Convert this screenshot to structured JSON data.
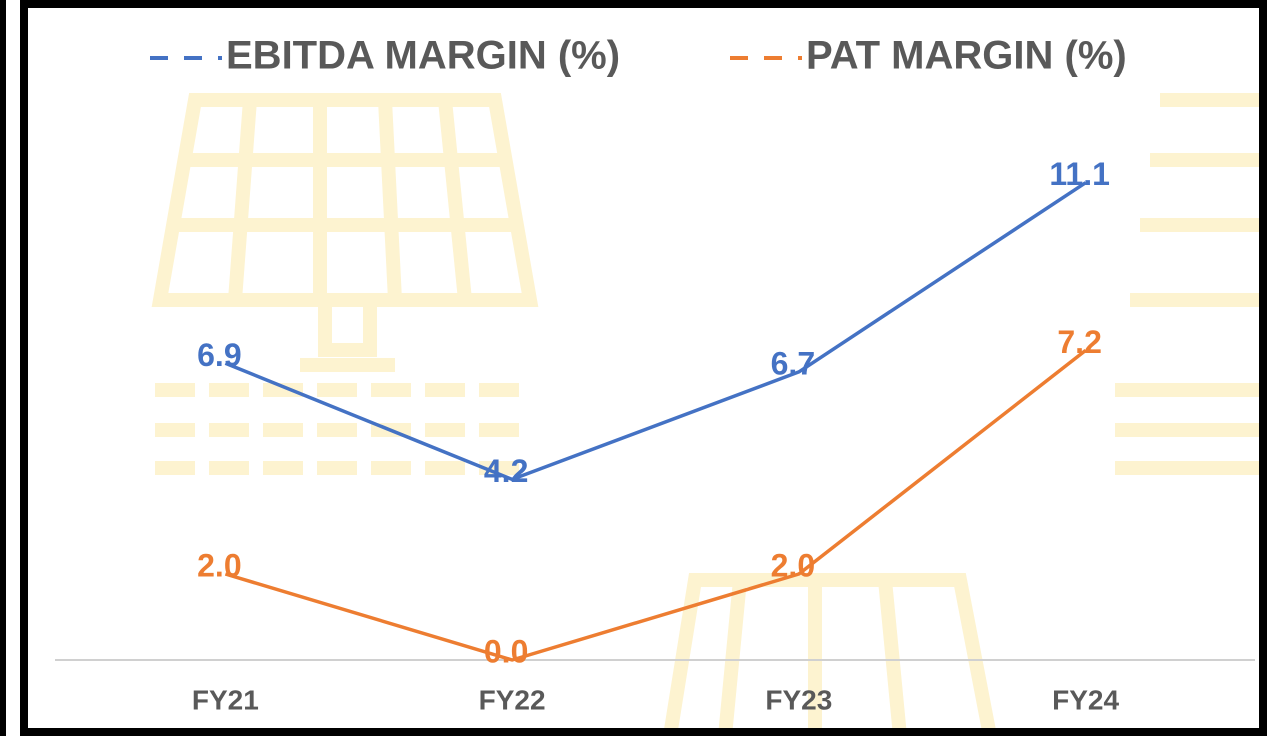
{
  "chart_data": {
    "type": "line",
    "categories": [
      "FY21",
      "FY22",
      "FY23",
      "FY24"
    ],
    "series": [
      {
        "name": "EBITDA MARGIN (%)",
        "color": "#4472c4",
        "values": [
          6.9,
          4.2,
          6.7,
          11.1
        ],
        "value_labels": [
          "6.9",
          "4.2",
          "6.7",
          "11.1"
        ]
      },
      {
        "name": "PAT MARGIN (%)",
        "color": "#ed7d31",
        "values": [
          2.0,
          0.0,
          2.0,
          7.2
        ],
        "value_labels": [
          "2.0",
          "0.0",
          "2.0",
          "7.2"
        ]
      }
    ],
    "ylim": [
      0,
      13
    ],
    "legend": "top"
  }
}
